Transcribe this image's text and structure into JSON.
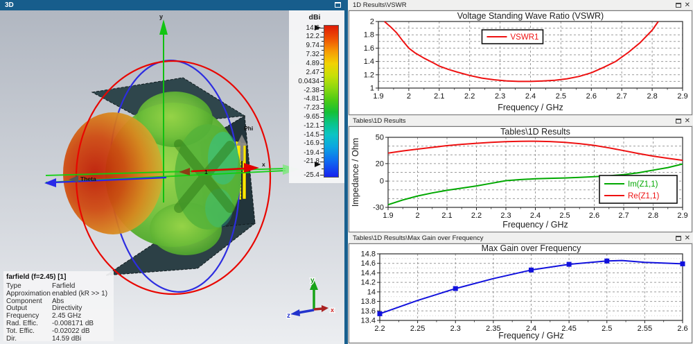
{
  "titlebar": {
    "title": "3D"
  },
  "viewport3d": {
    "axis_labels": {
      "x": "x",
      "y": "y",
      "z": "z"
    },
    "angle_labels": {
      "theta": "Theta",
      "phi": "Phi"
    },
    "port_label": "1",
    "axis_widget": {
      "x": "x",
      "y": "y",
      "z": "z"
    }
  },
  "colorbar": {
    "title": "dBi",
    "max": 14.6,
    "min": -25.4,
    "values": [
      14.6,
      12.2,
      9.74,
      7.32,
      4.89,
      2.47,
      0.0434,
      -2.38,
      -4.81,
      -7.23,
      -9.65,
      -12.1,
      -14.5,
      -16.9,
      -19.4,
      -21.8,
      -25.4
    ],
    "labels": [
      "14.6",
      "12.2",
      "9.74",
      "7.32",
      "4.89",
      "2.47",
      "0.0434",
      "-2.38",
      "-4.81",
      "-7.23",
      "-9.65",
      "-12.1",
      "-14.5",
      "-16.9",
      "-19.4",
      "-21.8",
      "-25.4"
    ],
    "marker_values": [
      14.6,
      -22.6
    ]
  },
  "farfield_info": {
    "title": "farfield (f=2.45) [1]",
    "rows": [
      [
        "Type",
        "Farfield"
      ],
      [
        "Approximation",
        "enabled (kR >> 1)"
      ],
      [
        "Component",
        "Abs"
      ],
      [
        "Output",
        "Directivity"
      ],
      [
        "Frequency",
        "2.45 GHz"
      ],
      [
        "Rad. Effic.",
        "-0.008171 dB"
      ],
      [
        "Tot. Effic.",
        "-0.02022 dB"
      ],
      [
        "Dir.",
        "14.59 dBi"
      ]
    ]
  },
  "panels": [
    {
      "tab": "1D Results\\VSWR"
    },
    {
      "tab": "Tables\\1D Results"
    },
    {
      "tab": "Tables\\1D Results\\Max Gain over Frequency"
    }
  ],
  "chart_data": [
    {
      "type": "line",
      "title": "Voltage Standing Wave Ratio (VSWR)",
      "xlabel": "Frequency / GHz",
      "ylabel": "",
      "xlim": [
        1.9,
        2.9
      ],
      "ylim": [
        1,
        2
      ],
      "xticks": [
        1.9,
        2,
        2.1,
        2.2,
        2.3,
        2.4,
        2.5,
        2.6,
        2.7,
        2.8,
        2.9
      ],
      "xtick_labels": [
        "1.9",
        "2",
        "2.1",
        "2.2",
        "2.3",
        "2.4",
        "2.5",
        "2.6",
        "2.7",
        "2.8",
        "2.9"
      ],
      "yticks": [
        1,
        1.2,
        1.4,
        1.6,
        1.8,
        2
      ],
      "ytick_labels": [
        "1",
        "1.2",
        "1.4",
        "1.6",
        "1.8",
        "2"
      ],
      "xgrid_step": 0.1,
      "ygrid_step": 0.1,
      "grid": true,
      "legend": {
        "position": "top-center",
        "entries": [
          {
            "label": "VSWR1",
            "color": "#ee1111"
          }
        ]
      },
      "series": [
        {
          "name": "VSWR1",
          "color": "#ee1111",
          "points": [
            [
              1.92,
              2.0
            ],
            [
              1.94,
              1.92
            ],
            [
              1.96,
              1.83
            ],
            [
              1.98,
              1.71
            ],
            [
              2.0,
              1.6
            ],
            [
              2.02,
              1.53
            ],
            [
              2.05,
              1.45
            ],
            [
              2.08,
              1.38
            ],
            [
              2.1,
              1.33
            ],
            [
              2.13,
              1.28
            ],
            [
              2.16,
              1.24
            ],
            [
              2.2,
              1.19
            ],
            [
              2.24,
              1.15
            ],
            [
              2.28,
              1.125
            ],
            [
              2.32,
              1.108
            ],
            [
              2.36,
              1.1
            ],
            [
              2.4,
              1.1
            ],
            [
              2.44,
              1.107
            ],
            [
              2.48,
              1.118
            ],
            [
              2.52,
              1.14
            ],
            [
              2.56,
              1.175
            ],
            [
              2.6,
              1.23
            ],
            [
              2.64,
              1.31
            ],
            [
              2.68,
              1.4
            ],
            [
              2.72,
              1.53
            ],
            [
              2.76,
              1.68
            ],
            [
              2.8,
              1.87
            ],
            [
              2.82,
              2.0
            ]
          ]
        }
      ]
    },
    {
      "type": "line",
      "title": "Tables\\1D Results",
      "xlabel": "Frequency / GHz",
      "ylabel": "Impedance / Ohm",
      "xlim": [
        1.9,
        2.9
      ],
      "ylim": [
        -30,
        50
      ],
      "xticks": [
        1.9,
        2,
        2.1,
        2.2,
        2.3,
        2.4,
        2.5,
        2.6,
        2.7,
        2.8,
        2.9
      ],
      "xtick_labels": [
        "1.9",
        "2",
        "2.1",
        "2.2",
        "2.3",
        "2.4",
        "2.5",
        "2.6",
        "2.7",
        "2.8",
        "2.9"
      ],
      "yticks": [
        50,
        20,
        0,
        -30
      ],
      "ytick_labels": [
        "50",
        "20",
        "0",
        "-30"
      ],
      "xgrid_step": 0.1,
      "ygrid_step": 10,
      "grid": true,
      "legend": {
        "position": "bottom-right",
        "entries": [
          {
            "label": "Im(Z1,1)",
            "color": "#00a800"
          },
          {
            "label": "Re(Z1,1)",
            "color": "#ee1111"
          }
        ]
      },
      "series": [
        {
          "name": "Im(Z1,1)",
          "color": "#00a800",
          "points": [
            [
              1.9,
              -27
            ],
            [
              1.95,
              -21.5
            ],
            [
              2.0,
              -17
            ],
            [
              2.05,
              -13.5
            ],
            [
              2.1,
              -10.5
            ],
            [
              2.15,
              -8
            ],
            [
              2.2,
              -5.5
            ],
            [
              2.25,
              -2.5
            ],
            [
              2.3,
              0.5
            ],
            [
              2.35,
              1.8
            ],
            [
              2.4,
              2.6
            ],
            [
              2.45,
              3.2
            ],
            [
              2.5,
              3.6
            ],
            [
              2.55,
              4.2
            ],
            [
              2.6,
              5
            ],
            [
              2.65,
              6
            ],
            [
              2.7,
              7.5
            ],
            [
              2.75,
              9.5
            ],
            [
              2.8,
              12.5
            ],
            [
              2.85,
              15.5
            ],
            [
              2.9,
              19.5
            ]
          ]
        },
        {
          "name": "Re(Z1,1)",
          "color": "#ee1111",
          "points": [
            [
              1.9,
              32
            ],
            [
              1.95,
              34.5
            ],
            [
              2.0,
              36.5
            ],
            [
              2.05,
              38.5
            ],
            [
              2.1,
              40.5
            ],
            [
              2.15,
              42
            ],
            [
              2.2,
              43.2
            ],
            [
              2.25,
              44.2
            ],
            [
              2.3,
              45
            ],
            [
              2.35,
              45.5
            ],
            [
              2.4,
              45.6
            ],
            [
              2.45,
              45.2
            ],
            [
              2.5,
              44.3
            ],
            [
              2.55,
              42.8
            ],
            [
              2.6,
              40.8
            ],
            [
              2.65,
              38
            ],
            [
              2.7,
              34.8
            ],
            [
              2.75,
              31.5
            ],
            [
              2.8,
              28.5
            ],
            [
              2.85,
              26
            ],
            [
              2.9,
              23.8
            ]
          ]
        }
      ]
    },
    {
      "type": "line",
      "title": "Max Gain over Frequency",
      "xlabel": "Frequency / GHz",
      "ylabel": "",
      "xlim": [
        2.2,
        2.6
      ],
      "ylim": [
        13.4,
        14.8
      ],
      "xticks": [
        2.2,
        2.25,
        2.3,
        2.35,
        2.4,
        2.45,
        2.5,
        2.55,
        2.6
      ],
      "xtick_labels": [
        "2.2",
        "2.25",
        "2.3",
        "2.35",
        "2.4",
        "2.45",
        "2.5",
        "2.55",
        "2.6"
      ],
      "yticks": [
        13.4,
        13.6,
        13.8,
        14,
        14.2,
        14.4,
        14.6,
        14.8
      ],
      "ytick_labels": [
        "13.4",
        "13.6",
        "13.8",
        "14",
        "14.2",
        "14.4",
        "14.6",
        "14.8"
      ],
      "xgrid_step": 0.05,
      "ygrid_step": 0.2,
      "ygrid_minor_step": 0.1,
      "grid": true,
      "legend": null,
      "series": [
        {
          "name": "Max Gain",
          "color": "#1111dd",
          "marker": "square",
          "marker_x": [
            2.2,
            2.3,
            2.4,
            2.45,
            2.5,
            2.6
          ],
          "points": [
            [
              2.2,
              13.54
            ],
            [
              2.25,
              13.82
            ],
            [
              2.3,
              14.07
            ],
            [
              2.35,
              14.28
            ],
            [
              2.4,
              14.46
            ],
            [
              2.45,
              14.58
            ],
            [
              2.5,
              14.65
            ],
            [
              2.52,
              14.66
            ],
            [
              2.55,
              14.62
            ],
            [
              2.6,
              14.59
            ]
          ]
        }
      ]
    }
  ]
}
